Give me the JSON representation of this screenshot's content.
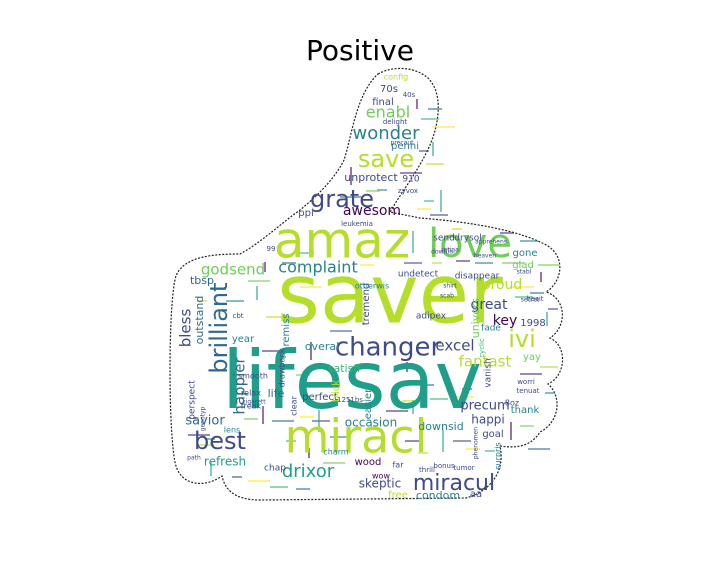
{
  "title": "Positive",
  "colors": {
    "outline": "#222222",
    "palette": [
      "#440154",
      "#482878",
      "#3e4a89",
      "#31688e",
      "#26828e",
      "#1f9e89",
      "#35b779",
      "#6ece58",
      "#b5de2b",
      "#fde725"
    ]
  },
  "words": [
    {
      "text": "saver",
      "c": "#b5de2b"
    },
    {
      "text": "lifesav",
      "c": "#1f9e89"
    },
    {
      "text": "amaz",
      "c": "#b5de2b"
    },
    {
      "text": "miracl",
      "c": "#b5de2b"
    },
    {
      "text": "love",
      "c": "#6ece58"
    },
    {
      "text": "changer",
      "c": "#3e4a89"
    },
    {
      "text": "brilliant",
      "c": "#31688e"
    },
    {
      "text": "grate",
      "c": "#3e4a89"
    },
    {
      "text": "save",
      "c": "#b5de2b"
    },
    {
      "text": "best",
      "c": "#3e4a89"
    },
    {
      "text": "ivi",
      "c": "#b5de2b"
    },
    {
      "text": "miracul",
      "c": "#3e4a89"
    },
    {
      "text": "wonder",
      "c": "#26828e"
    },
    {
      "text": "drixor",
      "c": "#1f9e89"
    },
    {
      "text": "complaint",
      "c": "#26828e"
    },
    {
      "text": "enabl",
      "c": "#6ece58"
    },
    {
      "text": "godsend",
      "c": "#6ece58"
    },
    {
      "text": "awesom",
      "c": "#440154"
    },
    {
      "text": "excel",
      "c": "#3e4a89"
    },
    {
      "text": "bless",
      "c": "#3e4a89"
    },
    {
      "text": "fantast",
      "c": "#b5de2b"
    },
    {
      "text": "proud",
      "c": "#b5de2b"
    },
    {
      "text": "great",
      "c": "#3e4a89"
    },
    {
      "text": "key",
      "c": "#440154"
    },
    {
      "text": "precum",
      "c": "#3e4a89"
    },
    {
      "text": "happier",
      "c": "#31688e"
    },
    {
      "text": "savior",
      "c": "#31688e"
    },
    {
      "text": "refresh",
      "c": "#1f9e89"
    },
    {
      "text": "skeptic",
      "c": "#3e4a89"
    },
    {
      "text": "condom",
      "c": "#26828e"
    },
    {
      "text": "unprotect",
      "c": "#3e4a89"
    },
    {
      "text": "penni",
      "c": "#26828e"
    },
    {
      "text": "final",
      "c": "#3e4a89"
    },
    {
      "text": "70s",
      "c": "#3e4a89"
    },
    {
      "text": "910",
      "c": "#3e4a89"
    },
    {
      "text": "ppl",
      "c": "#3e4a89"
    },
    {
      "text": "send",
      "c": "#3e4a89"
    },
    {
      "text": "drysol",
      "c": "#3e4a89"
    },
    {
      "text": "glad",
      "c": "#6ece58"
    },
    {
      "text": "gone",
      "c": "#26828e"
    },
    {
      "text": "tbsp",
      "c": "#31688e"
    },
    {
      "text": "undetect",
      "c": "#3e4a89"
    },
    {
      "text": "disappear",
      "c": "#3e4a89"
    },
    {
      "text": "outstand",
      "c": "#31688e"
    },
    {
      "text": "tremend",
      "c": "#3e4a89"
    },
    {
      "text": "remiss",
      "c": "#26828e"
    },
    {
      "text": "univers",
      "c": "#6ece58"
    },
    {
      "text": "adipex",
      "c": "#3e4a89"
    },
    {
      "text": "fade",
      "c": "#26828e"
    },
    {
      "text": "1998",
      "c": "#3e4a89"
    },
    {
      "text": "overal",
      "c": "#26828e"
    },
    {
      "text": "satisfi",
      "c": "#35b779"
    },
    {
      "text": "vanish",
      "c": "#3e4a89"
    },
    {
      "text": "yay",
      "c": "#6ece58"
    },
    {
      "text": "year",
      "c": "#26828e"
    },
    {
      "text": "life",
      "c": "#31688e"
    },
    {
      "text": "perfect",
      "c": "#3e4a89"
    },
    {
      "text": "trick",
      "c": "#b5de2b"
    },
    {
      "text": "easier",
      "c": "#26828e"
    },
    {
      "text": "occasion",
      "c": "#26828e"
    },
    {
      "text": "downsid",
      "c": "#26828e"
    },
    {
      "text": "happi",
      "c": "#3e4a89"
    },
    {
      "text": "goal",
      "c": "#3e4a89"
    },
    {
      "text": "thank",
      "c": "#26828e"
    },
    {
      "text": "wood",
      "c": "#440154"
    },
    {
      "text": "free",
      "c": "#b5de2b"
    },
    {
      "text": "aa",
      "c": "#3e4a89"
    },
    {
      "text": "chap",
      "c": "#3e4a89"
    },
    {
      "text": "perspect",
      "c": "#3e4a89"
    },
    {
      "text": "drawback",
      "c": "#3e4a89"
    },
    {
      "text": "smooth",
      "c": "#3e4a89"
    },
    {
      "text": "relax",
      "c": "#3e4a89"
    },
    {
      "text": "clear",
      "c": "#3e4a89"
    },
    {
      "text": "surpris",
      "c": "#26828e"
    },
    {
      "text": "wow",
      "c": "#440154"
    },
    {
      "text": "freak",
      "c": "#3e4a89"
    },
    {
      "text": "charm",
      "c": "#26828e"
    },
    {
      "text": "lens",
      "c": "#26828e"
    },
    {
      "text": "far",
      "c": "#3e4a89"
    },
    {
      "text": "1251bs",
      "c": "#3e4a89"
    },
    {
      "text": "cbt",
      "c": "#3e4a89"
    },
    {
      "text": "otherwis",
      "c": "#26828e"
    },
    {
      "text": "99",
      "c": "#3e4a89"
    },
    {
      "text": "cyclic",
      "c": "#35b779"
    },
    {
      "text": "hesit",
      "c": "#3e4a89"
    },
    {
      "text": "tenuat",
      "c": "#3e4a89"
    },
    {
      "text": "worri",
      "c": "#3e4a89"
    },
    {
      "text": "leukemia",
      "c": "#3e4a89"
    },
    {
      "text": "zyvox",
      "c": "#3e4a89"
    },
    {
      "text": "config",
      "c": "#b5de2b"
    },
    {
      "text": "40s",
      "c": "#3e4a89"
    },
    {
      "text": "delight",
      "c": "#3e4a89"
    },
    {
      "text": "precaut",
      "c": "#3e4a89"
    },
    {
      "text": "secret",
      "c": "#3e4a89"
    },
    {
      "text": "stabl",
      "c": "#3e4a89"
    },
    {
      "text": "thrill",
      "c": "#3e4a89"
    },
    {
      "text": "bonus",
      "c": "#3e4a89"
    },
    {
      "text": "tumor",
      "c": "#3e4a89"
    },
    {
      "text": "phenomen",
      "c": "#3e4a89"
    },
    {
      "text": "heaven",
      "c": "#3e4a89"
    },
    {
      "text": "path",
      "c": "#3e4a89"
    },
    {
      "text": "scab",
      "c": "#3e4a89"
    },
    {
      "text": "shirt",
      "c": "#3e4a89"
    },
    {
      "text": "8oz",
      "c": "#3e4a89"
    },
    {
      "text": "downfal",
      "c": "#3e4a89"
    },
    {
      "text": "apprehens",
      "c": "#3e4a89"
    },
    {
      "text": "retina",
      "c": "#3e4a89"
    },
    {
      "text": "genotyp",
      "c": "#3e4a89"
    },
    {
      "text": "cigarett",
      "c": "#3e4a89"
    }
  ]
}
